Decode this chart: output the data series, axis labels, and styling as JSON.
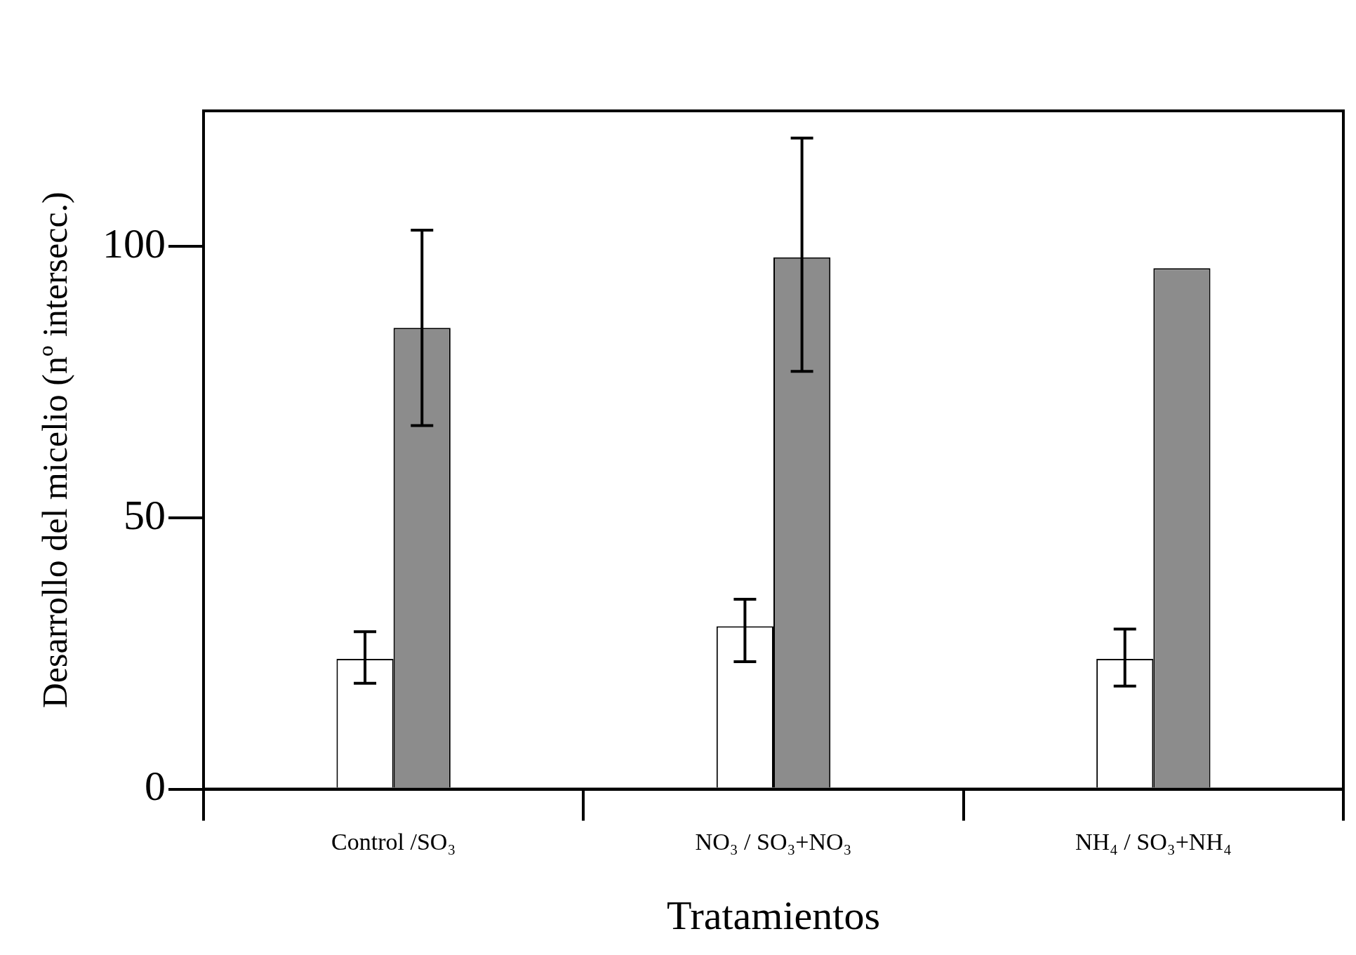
{
  "chart_data": {
    "type": "bar",
    "xlabel": "Tratamientos",
    "ylabel": "Desarrollo del micelio (nº intersecc.)",
    "categories": [
      "Control /SO₃",
      "NO₃ / SO₃+NO₃",
      "NH₄ / SO₃+NH₄"
    ],
    "series": [
      {
        "color": "#ffffff",
        "values": [
          24,
          30,
          24
        ],
        "errors": [
          [
            19.5,
            29
          ],
          [
            23.5,
            35
          ],
          [
            19,
            29.5
          ]
        ]
      },
      {
        "color": "#8c8c8c",
        "values": [
          85,
          98,
          96
        ],
        "errors": [
          [
            67,
            103
          ],
          [
            77,
            120
          ],
          null
        ]
      }
    ],
    "ylim": [
      0,
      125
    ],
    "yticks": [
      0,
      50,
      100
    ],
    "legend": false
  }
}
